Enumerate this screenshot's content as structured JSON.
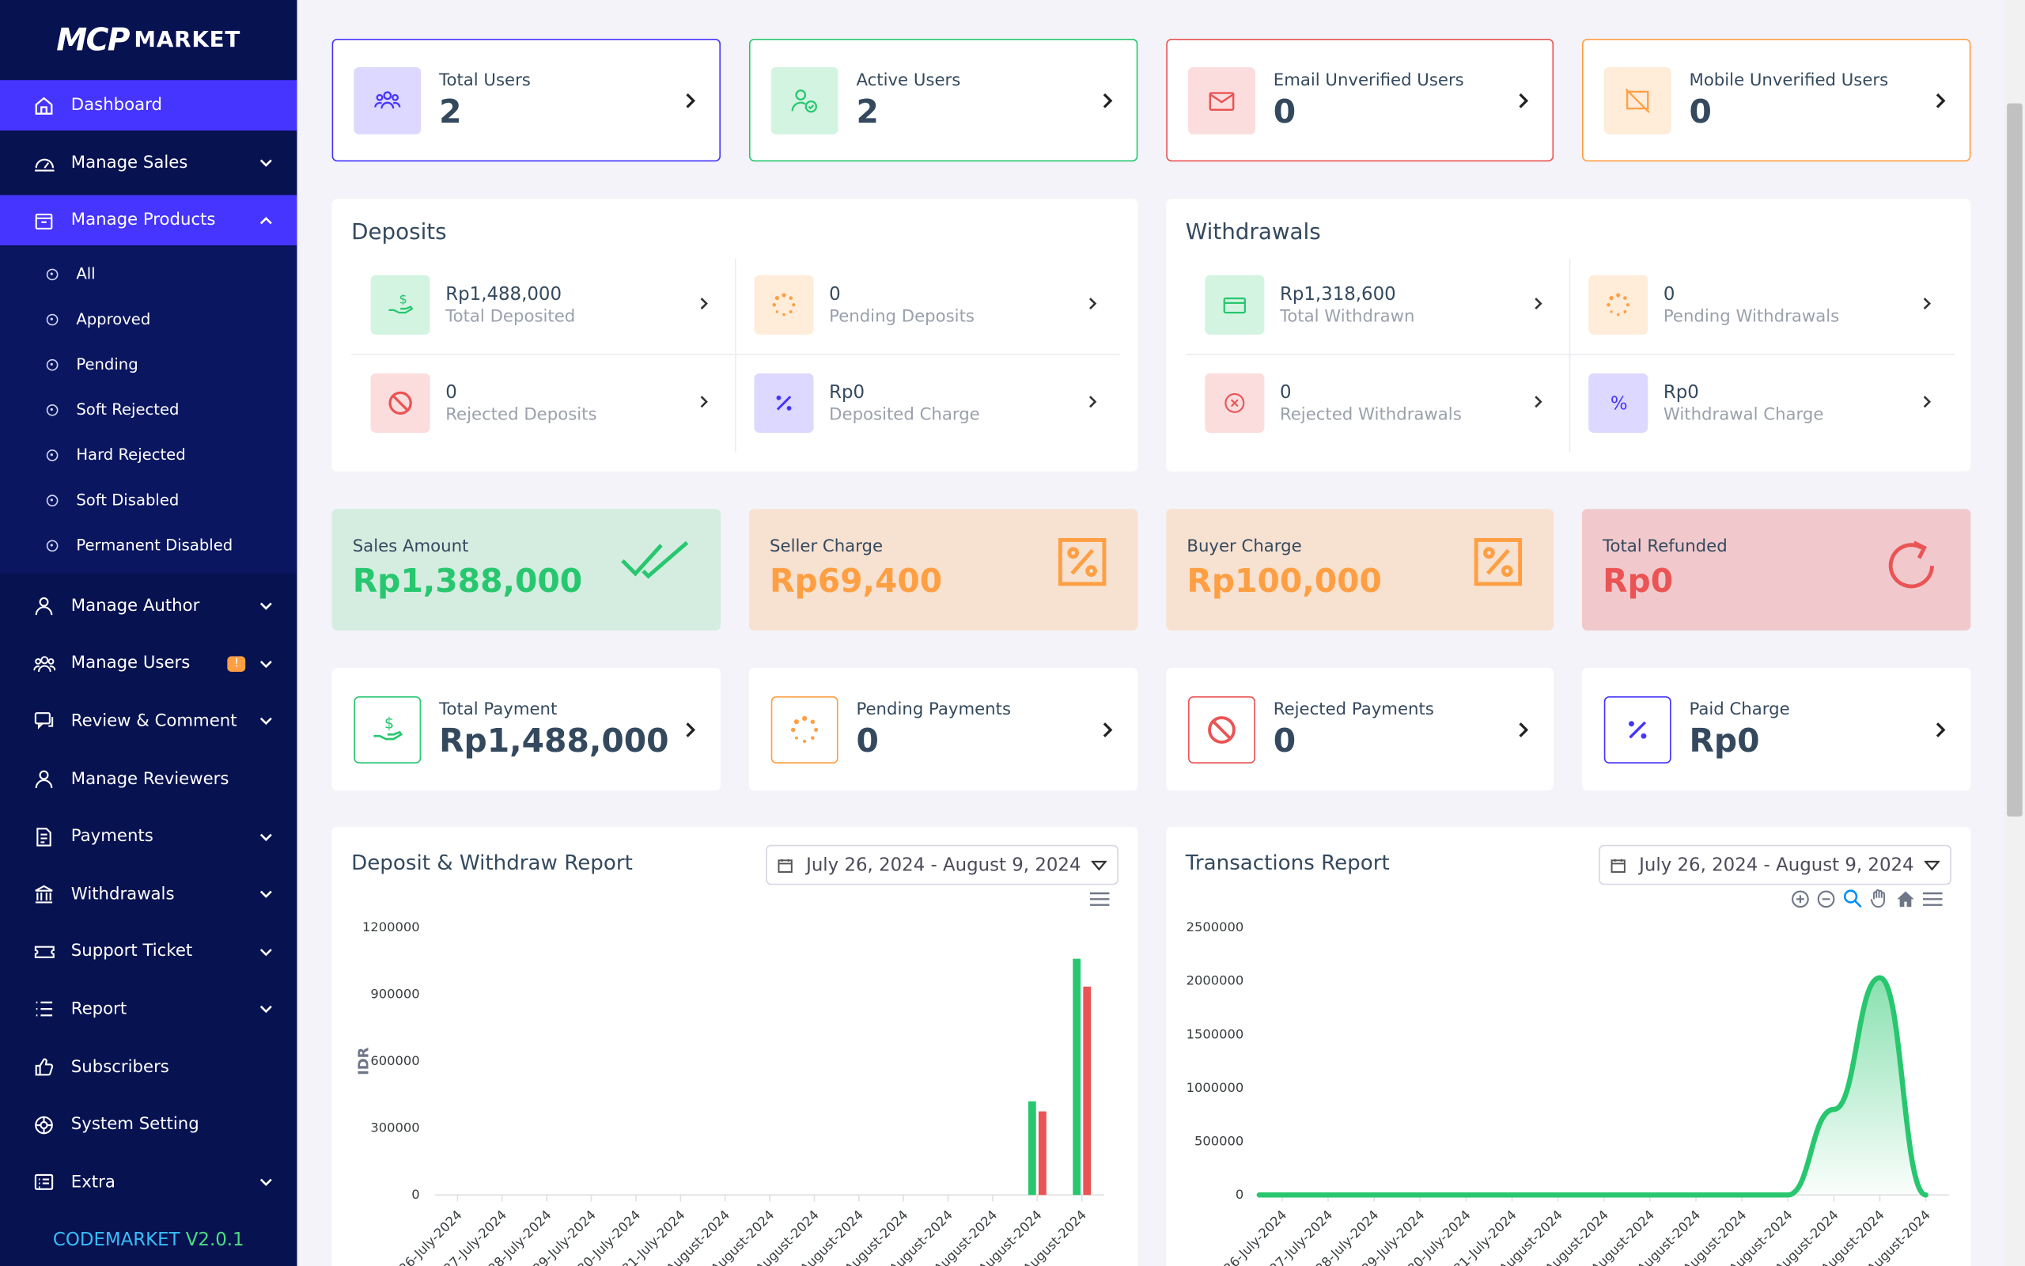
{
  "brand": {
    "mark": "MCP",
    "name": "MARKET"
  },
  "sidebar": {
    "items": [
      {
        "label": "Dashboard",
        "icon": "home-icon"
      },
      {
        "label": "Manage Sales",
        "icon": "sales-icon"
      },
      {
        "label": "Manage Products",
        "icon": "products-icon"
      },
      {
        "label": "Manage Author",
        "icon": "author-icon"
      },
      {
        "label": "Manage Users",
        "icon": "users-icon",
        "badge": "!"
      },
      {
        "label": "Review & Comment",
        "icon": "review-icon"
      },
      {
        "label": "Manage Reviewers",
        "icon": "reviewer-icon"
      },
      {
        "label": "Payments",
        "icon": "payments-icon"
      },
      {
        "label": "Withdrawals",
        "icon": "bank-icon"
      },
      {
        "label": "Support Ticket",
        "icon": "ticket-icon"
      },
      {
        "label": "Report",
        "icon": "report-icon"
      },
      {
        "label": "Subscribers",
        "icon": "thumbs-up-icon"
      },
      {
        "label": "System Setting",
        "icon": "settings-icon"
      },
      {
        "label": "Extra",
        "icon": "extra-icon"
      }
    ],
    "product_sub": [
      "All",
      "Approved",
      "Pending",
      "Soft Rejected",
      "Hard Rejected",
      "Soft Disabled",
      "Permanent Disabled"
    ],
    "version": {
      "name": "CODEMARKET",
      "number": "V2.0.1"
    }
  },
  "widgets": [
    {
      "label": "Total Users",
      "value": "2",
      "color": "#4634ff"
    },
    {
      "label": "Active Users",
      "value": "2",
      "color": "#28c76f"
    },
    {
      "label": "Email Unverified Users",
      "value": "0",
      "color": "#ea5455"
    },
    {
      "label": "Mobile Unverified Users",
      "value": "0",
      "color": "#ff9f43"
    }
  ],
  "deposits": {
    "title": "Deposits",
    "cells": [
      {
        "value": "Rp1,488,000",
        "label": "Total Deposited"
      },
      {
        "value": "0",
        "label": "Pending Deposits"
      },
      {
        "value": "0",
        "label": "Rejected Deposits"
      },
      {
        "value": "Rp0",
        "label": "Deposited Charge"
      }
    ]
  },
  "withdrawals": {
    "title": "Withdrawals",
    "cells": [
      {
        "value": "Rp1,318,600",
        "label": "Total Withdrawn"
      },
      {
        "value": "0",
        "label": "Pending Withdrawals"
      },
      {
        "value": "0",
        "label": "Rejected Withdrawals"
      },
      {
        "value": "Rp0",
        "label": "Withdrawal Charge"
      }
    ]
  },
  "stats": [
    {
      "label": "Sales Amount",
      "value": "Rp1,388,000",
      "color": "#28c76f"
    },
    {
      "label": "Seller Charge",
      "value": "Rp69,400",
      "color": "#ff9f43"
    },
    {
      "label": "Buyer Charge",
      "value": "Rp100,000",
      "color": "#ff9f43"
    },
    {
      "label": "Total Refunded",
      "value": "Rp0",
      "color": "#ea5455"
    }
  ],
  "payments": [
    {
      "label": "Total Payment",
      "value": "Rp1,488,000"
    },
    {
      "label": "Pending Payments",
      "value": "0"
    },
    {
      "label": "Rejected Payments",
      "value": "0"
    },
    {
      "label": "Paid Charge",
      "value": "Rp0"
    }
  ],
  "deposit_chart": {
    "title": "Deposit & Withdraw Report",
    "date_range": "July 26, 2024 - August 9, 2024"
  },
  "transactions_chart": {
    "title": "Transactions Report",
    "date_range": "July 26, 2024 - August 9, 2024"
  },
  "chart_data": [
    {
      "type": "bar",
      "title": "Deposit & Withdraw Report",
      "ylabel": "IDR",
      "ylim": [
        0,
        1200000
      ],
      "yticks": [
        "1200000",
        "900000",
        "600000",
        "300000",
        "0"
      ],
      "categories": [
        "26-July-2024",
        "27-July-2024",
        "28-July-2024",
        "29-July-2024",
        "30-July-2024",
        "31-July-2024",
        "August-2024",
        "August-2024",
        "August-2024",
        "August-2024",
        "August-2024",
        "August-2024",
        "August-2024",
        "August-2024",
        "August-2024"
      ],
      "series": [
        {
          "values": [
            0,
            0,
            0,
            0,
            0,
            0,
            0,
            0,
            0,
            0,
            0,
            0,
            0,
            420000,
            1060000
          ],
          "color": "#28c76f"
        },
        {
          "values": [
            0,
            0,
            0,
            0,
            0,
            0,
            0,
            0,
            0,
            0,
            0,
            0,
            0,
            375000,
            935000
          ],
          "color": "#ea5455"
        }
      ]
    },
    {
      "type": "area",
      "title": "Transactions Report",
      "ylim": [
        0,
        2500000
      ],
      "yticks": [
        "2500000",
        "2000000",
        "1500000",
        "1000000",
        "500000",
        "0"
      ],
      "categories": [
        "26-July-2024",
        "27-July-2024",
        "28-July-2024",
        "29-July-2024",
        "30-July-2024",
        "31-July-2024",
        "August-2024",
        "August-2024",
        "August-2024",
        "August-2024",
        "August-2024",
        "August-2024",
        "August-2024",
        "August-2024",
        "August-2024"
      ],
      "series": [
        {
          "values": [
            0,
            0,
            0,
            0,
            0,
            0,
            0,
            0,
            0,
            0,
            0,
            0,
            800000,
            2030000,
            0
          ],
          "color": "#28c76f"
        }
      ]
    }
  ]
}
